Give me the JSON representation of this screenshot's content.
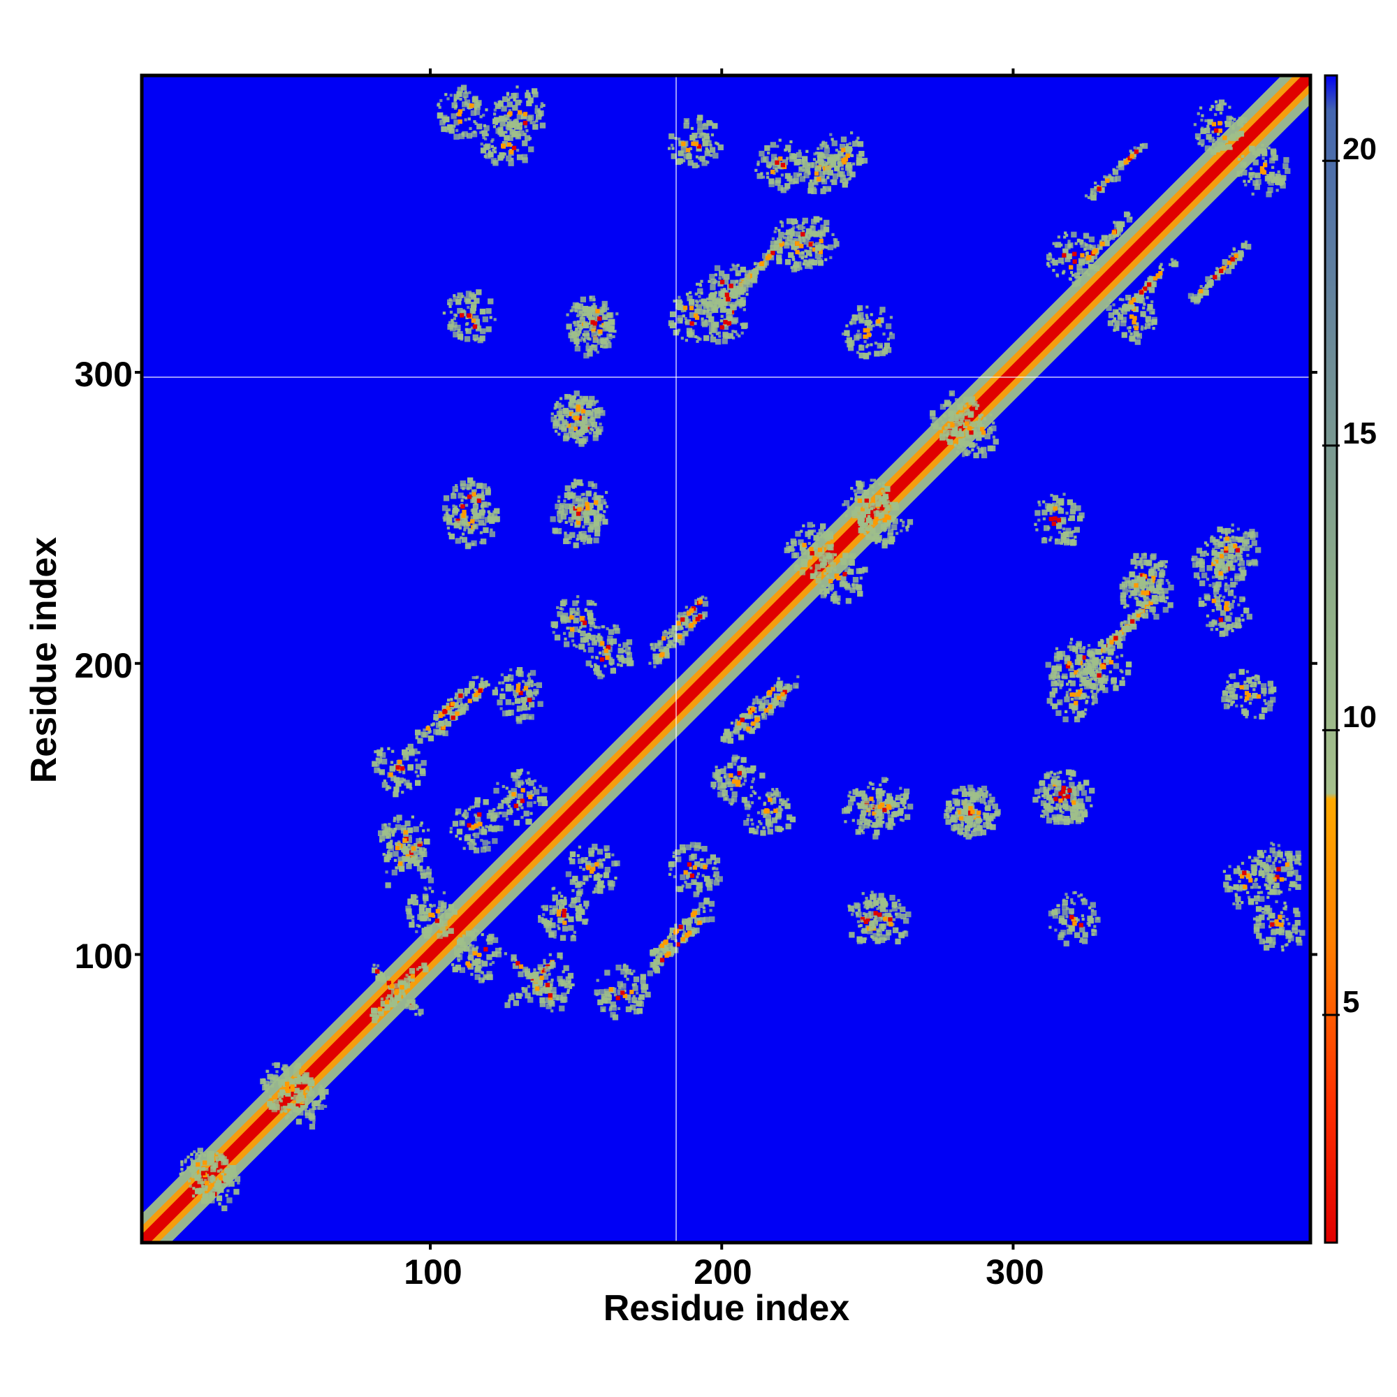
{
  "chart_data": {
    "type": "heatmap",
    "title": "",
    "xlabel": "Residue index",
    "ylabel": "Residue index",
    "xlim": [
      1,
      402
    ],
    "ylim": [
      1,
      402
    ],
    "x_ticks": [
      100,
      200,
      300
    ],
    "y_ticks": [
      100,
      200,
      300
    ],
    "x_tick_labels": [
      "100",
      "200",
      "300"
    ],
    "y_tick_labels": [
      "100",
      "200",
      "300"
    ],
    "colorbar": {
      "ticks": [
        5,
        10,
        15,
        20
      ],
      "tick_labels": [
        "5",
        "10",
        "15",
        "20"
      ],
      "range": [
        1,
        21.5
      ],
      "colors": {
        "near": "#e00000",
        "mid": "#ff9a00",
        "contact": "#9fbf8a",
        "far_edge": "#4a6ea8",
        "background": "#0000f5"
      }
    },
    "symmetric": true,
    "diagonal_band": {
      "from": 1,
      "to": 402
    },
    "contact_features": [
      {
        "x": 25,
        "y": 22,
        "kind": "cluster"
      },
      {
        "x": 55,
        "y": 50,
        "kind": "cluster"
      },
      {
        "x": 88,
        "y": 88,
        "kind": "cross"
      },
      {
        "x": 100,
        "y": 115,
        "kind": "cluster"
      },
      {
        "x": 135,
        "y": 92,
        "kind": "cross"
      },
      {
        "x": 115,
        "y": 145,
        "kind": "cluster"
      },
      {
        "x": 90,
        "y": 140,
        "kind": "cluster"
      },
      {
        "x": 88,
        "y": 165,
        "kind": "cluster"
      },
      {
        "x": 110,
        "y": 185,
        "kind": "strand"
      },
      {
        "x": 130,
        "y": 190,
        "kind": "cluster"
      },
      {
        "x": 160,
        "y": 205,
        "kind": "cluster"
      },
      {
        "x": 185,
        "y": 105,
        "kind": "strand"
      },
      {
        "x": 185,
        "y": 215,
        "kind": "strand"
      },
      {
        "x": 210,
        "y": 185,
        "kind": "strand"
      },
      {
        "x": 215,
        "y": 150,
        "kind": "cluster"
      },
      {
        "x": 155,
        "y": 130,
        "kind": "cluster"
      },
      {
        "x": 250,
        "y": 150,
        "kind": "cluster"
      },
      {
        "x": 285,
        "y": 150,
        "kind": "cluster"
      },
      {
        "x": 315,
        "y": 155,
        "kind": "cluster"
      },
      {
        "x": 250,
        "y": 113,
        "kind": "cluster"
      },
      {
        "x": 320,
        "y": 200,
        "kind": "cluster"
      },
      {
        "x": 335,
        "y": 210,
        "kind": "strand"
      },
      {
        "x": 345,
        "y": 230,
        "kind": "cluster"
      },
      {
        "x": 370,
        "y": 235,
        "kind": "cluster"
      },
      {
        "x": 390,
        "y": 130,
        "kind": "cluster"
      },
      {
        "x": 380,
        "y": 190,
        "kind": "cluster"
      },
      {
        "x": 230,
        "y": 240,
        "kind": "cluster"
      },
      {
        "x": 250,
        "y": 255,
        "kind": "cluster"
      },
      {
        "x": 280,
        "y": 285,
        "kind": "cluster"
      },
      {
        "x": 320,
        "y": 340,
        "kind": "cluster"
      },
      {
        "x": 335,
        "y": 370,
        "kind": "strand"
      },
      {
        "x": 345,
        "y": 330,
        "kind": "strand"
      },
      {
        "x": 370,
        "y": 385,
        "kind": "cluster"
      },
      {
        "x": 215,
        "y": 340,
        "kind": "strand"
      },
      {
        "x": 225,
        "y": 345,
        "kind": "cluster"
      },
      {
        "x": 200,
        "y": 330,
        "kind": "cluster"
      },
      {
        "x": 190,
        "y": 320,
        "kind": "cluster"
      },
      {
        "x": 220,
        "y": 372,
        "kind": "cluster"
      },
      {
        "x": 240,
        "y": 375,
        "kind": "cluster"
      },
      {
        "x": 125,
        "y": 380,
        "kind": "cluster"
      },
      {
        "x": 110,
        "y": 390,
        "kind": "cluster"
      },
      {
        "x": 155,
        "y": 318,
        "kind": "cluster"
      },
      {
        "x": 150,
        "y": 285,
        "kind": "cluster"
      },
      {
        "x": 152,
        "y": 255,
        "kind": "cluster"
      },
      {
        "x": 113,
        "y": 255,
        "kind": "cluster"
      },
      {
        "x": 113,
        "y": 320,
        "kind": "cluster"
      },
      {
        "x": 250,
        "y": 315,
        "kind": "cluster"
      }
    ]
  }
}
